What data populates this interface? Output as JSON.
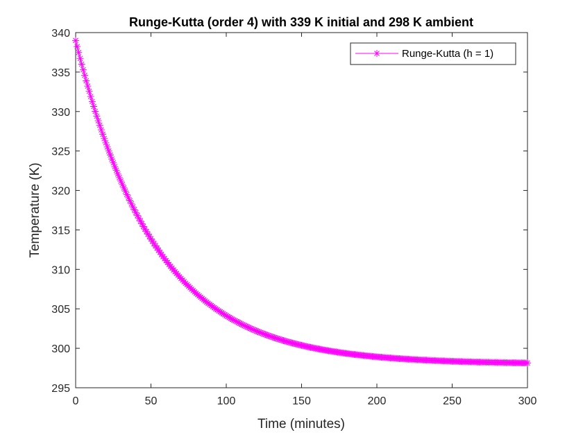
{
  "chart_data": {
    "type": "line",
    "title": "Runge-Kutta (order 4) with 339 K initial and 298 K ambient",
    "xlabel": "Time (minutes)",
    "ylabel": "Temperature (K)",
    "xlim": [
      0,
      300
    ],
    "ylim": [
      295,
      340
    ],
    "xticks": [
      "0",
      "50",
      "100",
      "150",
      "200",
      "250",
      "300"
    ],
    "yticks": [
      "295",
      "300",
      "305",
      "310",
      "315",
      "320",
      "325",
      "330",
      "335",
      "340"
    ],
    "grid": false,
    "legend_position": "top-right",
    "series": [
      {
        "name": "Runge-Kutta (h = 1)",
        "color": "#ff00ff",
        "marker": "asterisk",
        "x_start": 0,
        "x_end": 300,
        "x_step": 1,
        "model": "exponential decay",
        "initial_value": 339,
        "ambient_value": 298,
        "decay_rate_per_minute": 0.019,
        "sample_points": [
          {
            "x": 0,
            "y": 339.0
          },
          {
            "x": 50,
            "y": 313.9
          },
          {
            "x": 100,
            "y": 304.1
          },
          {
            "x": 150,
            "y": 300.4
          },
          {
            "x": 200,
            "y": 298.9
          },
          {
            "x": 250,
            "y": 298.4
          },
          {
            "x": 300,
            "y": 298.1
          }
        ]
      }
    ]
  }
}
